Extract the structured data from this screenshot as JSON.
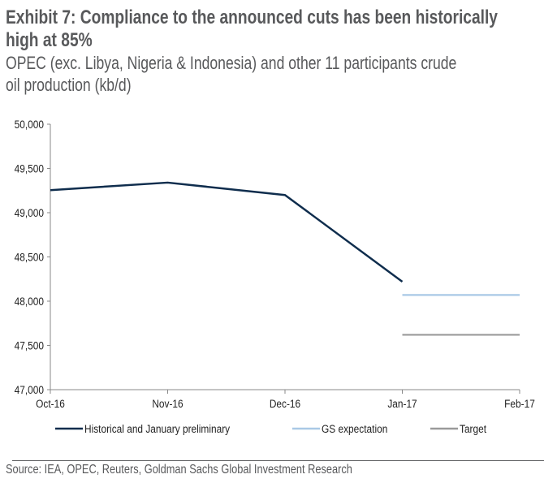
{
  "title_line1": "Exhibit 7: Compliance to the announced cuts has been historically",
  "title_line2": "high at 85%",
  "subtitle_line1": "OPEC (exc. Libya, Nigeria & Indonesia) and other 11 participants crude",
  "subtitle_line2": "oil production (kb/d)",
  "source": "Source: IEA, OPEC, Reuters, Goldman Sachs Global Investment Research",
  "chart_data": {
    "type": "line",
    "title": "Exhibit 7: Compliance to the announced cuts has been historically high at 85%",
    "ylabel": "kb/d",
    "categories": [
      "Oct-16",
      "Nov-16",
      "Dec-16",
      "Jan-17",
      "Feb-17"
    ],
    "ylim": [
      47000,
      50000
    ],
    "yticks": [
      47000,
      47500,
      48000,
      48500,
      49000,
      49500,
      50000
    ],
    "ytick_labels": [
      "47,000",
      "47,500",
      "48,000",
      "48,500",
      "49,000",
      "49,500",
      "50,000"
    ],
    "grid": false,
    "legend_position": "bottom",
    "series": [
      {
        "name": "Historical and January preliminary",
        "color": "#0f2d4d",
        "values": [
          49255,
          49340,
          49200,
          48220,
          null
        ]
      },
      {
        "name": "GS expectation",
        "color": "#a9c9e6",
        "values": [
          null,
          null,
          null,
          48070,
          48070
        ]
      },
      {
        "name": "Target",
        "color": "#9a9a9a",
        "values": [
          null,
          null,
          null,
          47620,
          47620
        ]
      }
    ]
  }
}
